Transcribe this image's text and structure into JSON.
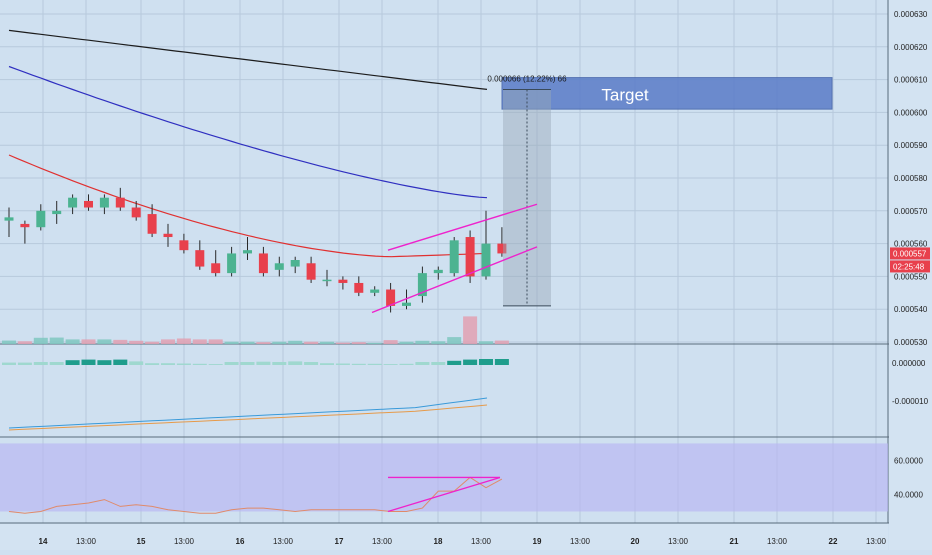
{
  "chart_data": [
    {
      "type": "candlestick",
      "title": "",
      "ylim": [
        0.00053,
        0.000635
      ],
      "y_ticks": [
        "0.000530",
        "0.000540",
        "0.000550",
        "0.000560",
        "0.000570",
        "0.000580",
        "0.000590",
        "0.000600",
        "0.000610",
        "0.000620",
        "0.000630"
      ],
      "x_ticks": [
        "14",
        "13:00",
        "15",
        "13:00",
        "16",
        "13:00",
        "17",
        "13:00",
        "18",
        "13:00",
        "19",
        "13:00",
        "20",
        "13:00",
        "21",
        "13:00",
        "22",
        "13:00"
      ],
      "candles": [
        {
          "o": 0.000567,
          "h": 0.000571,
          "l": 0.000562,
          "c": 0.000568
        },
        {
          "o": 0.000566,
          "h": 0.000567,
          "l": 0.00056,
          "c": 0.000565
        },
        {
          "o": 0.000565,
          "h": 0.000572,
          "l": 0.000564,
          "c": 0.00057
        },
        {
          "o": 0.000569,
          "h": 0.000573,
          "l": 0.000566,
          "c": 0.00057
        },
        {
          "o": 0.000571,
          "h": 0.000575,
          "l": 0.000569,
          "c": 0.000574
        },
        {
          "o": 0.000573,
          "h": 0.000575,
          "l": 0.00057,
          "c": 0.000571
        },
        {
          "o": 0.000571,
          "h": 0.000575,
          "l": 0.000569,
          "c": 0.000574
        },
        {
          "o": 0.000574,
          "h": 0.000577,
          "l": 0.00057,
          "c": 0.000571
        },
        {
          "o": 0.000571,
          "h": 0.000573,
          "l": 0.000567,
          "c": 0.000568
        },
        {
          "o": 0.000569,
          "h": 0.000572,
          "l": 0.000562,
          "c": 0.000563
        },
        {
          "o": 0.000563,
          "h": 0.000566,
          "l": 0.000559,
          "c": 0.000562
        },
        {
          "o": 0.000561,
          "h": 0.000563,
          "l": 0.000557,
          "c": 0.000558
        },
        {
          "o": 0.000558,
          "h": 0.000561,
          "l": 0.000552,
          "c": 0.000553
        },
        {
          "o": 0.000554,
          "h": 0.000558,
          "l": 0.00055,
          "c": 0.000551
        },
        {
          "o": 0.000551,
          "h": 0.000559,
          "l": 0.00055,
          "c": 0.000557
        },
        {
          "o": 0.000557,
          "h": 0.000562,
          "l": 0.000555,
          "c": 0.000558
        },
        {
          "o": 0.000557,
          "h": 0.000559,
          "l": 0.00055,
          "c": 0.000551
        },
        {
          "o": 0.000552,
          "h": 0.000556,
          "l": 0.00055,
          "c": 0.000554
        },
        {
          "o": 0.000553,
          "h": 0.000556,
          "l": 0.000551,
          "c": 0.000555
        },
        {
          "o": 0.000554,
          "h": 0.000556,
          "l": 0.000548,
          "c": 0.000549
        },
        {
          "o": 0.000549,
          "h": 0.000552,
          "l": 0.000547,
          "c": 0.000549
        },
        {
          "o": 0.000549,
          "h": 0.00055,
          "l": 0.000546,
          "c": 0.000548
        },
        {
          "o": 0.000548,
          "h": 0.00055,
          "l": 0.000544,
          "c": 0.000545
        },
        {
          "o": 0.000545,
          "h": 0.000547,
          "l": 0.000544,
          "c": 0.000546
        },
        {
          "o": 0.000546,
          "h": 0.000548,
          "l": 0.000539,
          "c": 0.000541
        },
        {
          "o": 0.000541,
          "h": 0.000546,
          "l": 0.00054,
          "c": 0.000542
        },
        {
          "o": 0.000544,
          "h": 0.000553,
          "l": 0.000542,
          "c": 0.000551
        },
        {
          "o": 0.000551,
          "h": 0.000553,
          "l": 0.000549,
          "c": 0.000552
        },
        {
          "o": 0.000551,
          "h": 0.000562,
          "l": 0.00055,
          "c": 0.000561
        },
        {
          "o": 0.000562,
          "h": 0.000564,
          "l": 0.000548,
          "c": 0.00055
        },
        {
          "o": 0.00055,
          "h": 0.00057,
          "l": 0.000549,
          "c": 0.00056
        },
        {
          "o": 0.00056,
          "h": 0.000565,
          "l": 0.000556,
          "c": 0.000557
        }
      ],
      "moving_averages": [
        {
          "color": "#1c1c1c",
          "from": 0.000625,
          "to": 0.000607,
          "shape": "linear"
        },
        {
          "color": "#2f2fc0",
          "from": 0.000614,
          "to": 0.000574,
          "shape": "concave"
        },
        {
          "color": "#e03030",
          "from": 0.000587,
          "to": 0.000557,
          "shape": "trough"
        }
      ],
      "last_price_label": "0.000557",
      "countdown_label": "02:25:48",
      "measure_label": "0.000066 (12.22%) 66",
      "target_label": "Target",
      "colors": {
        "up": "#4cb391",
        "down": "#e8404c",
        "channel": "#ee22cc",
        "target_box": "#5a7cc8"
      }
    },
    {
      "type": "bar",
      "title": "",
      "volumes": [
        1.5,
        1.2,
        2.7,
        2.8,
        2.0,
        2.0,
        2.0,
        1.8,
        1.4,
        1.0,
        2.0,
        2.4,
        2.0,
        2.0,
        1.0,
        1.0,
        0.8,
        1.0,
        1.4,
        1.0,
        1.0,
        0.6,
        0.8,
        0.5,
        1.7,
        1.0,
        1.4,
        1.2,
        3.0,
        12.0,
        1.2,
        1.5
      ]
    },
    {
      "type": "bar",
      "title": "",
      "y_ticks": [
        "0.000000",
        "-0.000010"
      ],
      "histogram": [
        0.4,
        0.4,
        0.5,
        0.5,
        0.8,
        0.9,
        0.8,
        0.9,
        0.6,
        0.3,
        0.3,
        0.25,
        0.2,
        0.15,
        0.5,
        0.5,
        0.55,
        0.5,
        0.6,
        0.5,
        0.3,
        0.25,
        0.2,
        0.2,
        0.15,
        0.2,
        0.5,
        0.5,
        0.7,
        0.9,
        1.0,
        1.0
      ]
    },
    {
      "type": "line",
      "title": "",
      "y_ticks": [
        "60.0000",
        "40.0000"
      ],
      "ylim": [
        25,
        72
      ],
      "rsi": [
        30,
        29,
        30,
        33,
        34,
        35,
        37,
        33,
        34,
        33,
        31,
        30,
        29,
        29,
        31,
        32,
        32,
        31,
        30,
        31,
        31,
        31,
        31,
        31,
        30,
        30,
        32,
        42,
        42,
        50,
        44,
        49
      ]
    }
  ]
}
